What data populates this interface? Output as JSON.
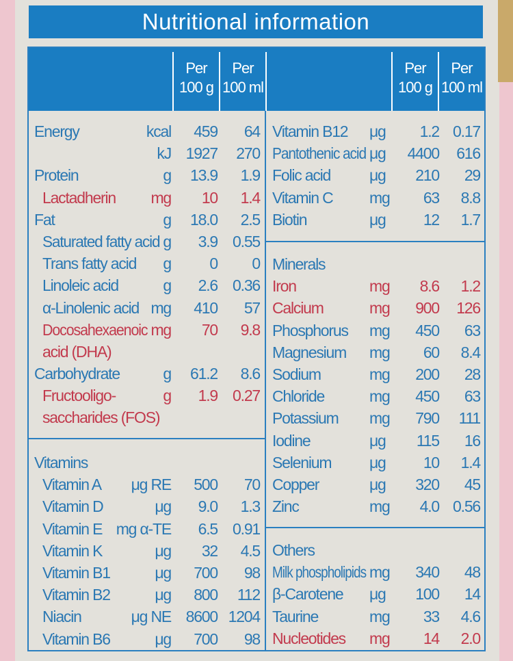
{
  "title": "Nutritional information",
  "header": {
    "per_100g": [
      "Per",
      "100 g"
    ],
    "per_100ml": [
      "Per",
      "100 ml"
    ]
  },
  "colors": {
    "blue": "#1a7dc2",
    "text_blue": "#2b78b3",
    "highlight_red": "#c23a4d",
    "background": "#e3e1db"
  },
  "left_main": [
    {
      "name": "Energy",
      "unit": "kcal",
      "g": "459",
      "ml": "64"
    },
    {
      "name": "",
      "unit": "kJ",
      "g": "1927",
      "ml": "270"
    },
    {
      "name": "Protein",
      "unit": "g",
      "g": "13.9",
      "ml": "1.9"
    },
    {
      "name": "Lactadherin",
      "unit": "mg",
      "g": "10",
      "ml": "1.4",
      "red": true,
      "indent": true
    },
    {
      "name": "Fat",
      "unit": "g",
      "g": "18.0",
      "ml": "2.5"
    },
    {
      "name": "Saturated fatty acid",
      "unit": "g",
      "g": "3.9",
      "ml": "0.55",
      "indent": true
    },
    {
      "name": "Trans fatty acid",
      "unit": "g",
      "g": "0",
      "ml": "0",
      "indent": true
    },
    {
      "name": "Linoleic acid",
      "unit": "g",
      "g": "2.6",
      "ml": "0.36",
      "indent": true
    },
    {
      "name": "α-Linolenic acid",
      "unit": "mg",
      "g": "410",
      "ml": "57",
      "indent": true
    },
    {
      "name": "Docosahexaenoic",
      "unit": "mg",
      "g": "70",
      "ml": "9.8",
      "red": true,
      "indent": true
    },
    {
      "name": "acid (DHA)",
      "unit": "",
      "g": "",
      "ml": "",
      "red": true,
      "indent": true
    },
    {
      "name": "Carbohydrate",
      "unit": "g",
      "g": "61.2",
      "ml": "8.6"
    },
    {
      "name": "Fructooligo-",
      "unit": "g",
      "g": "1.9",
      "ml": "0.27",
      "red": true,
      "indent": true
    },
    {
      "name": "saccharides (FOS)",
      "unit": "",
      "g": "",
      "ml": "",
      "red": true,
      "indent": true
    }
  ],
  "vitamins": {
    "heading": "Vitamins",
    "rows": [
      {
        "name": "Vitamin A",
        "unit": "μg RE",
        "g": "500",
        "ml": "70",
        "indent": true
      },
      {
        "name": "Vitamin D",
        "unit": "μg",
        "g": "9.0",
        "ml": "1.3",
        "indent": true
      },
      {
        "name": "Vitamin E",
        "unit": "mg α-TE",
        "g": "6.5",
        "ml": "0.91",
        "indent": true
      },
      {
        "name": "Vitamin K",
        "unit": "μg",
        "g": "32",
        "ml": "4.5",
        "indent": true
      },
      {
        "name": "Vitamin B1",
        "unit": "μg",
        "g": "700",
        "ml": "98",
        "indent": true
      },
      {
        "name": "Vitamin B2",
        "unit": "μg",
        "g": "800",
        "ml": "112",
        "indent": true
      },
      {
        "name": "Niacin",
        "unit": "μg NE",
        "g": "8600",
        "ml": "1204",
        "indent": true
      },
      {
        "name": "Vitamin B6",
        "unit": "μg",
        "g": "700",
        "ml": "98",
        "indent": true
      }
    ]
  },
  "right_vitamins": [
    {
      "name": "Vitamin B12",
      "unit": "μg",
      "g": "1.2",
      "ml": "0.17"
    },
    {
      "name": "Pantothenic acid",
      "unit": "μg",
      "g": "4400",
      "ml": "616"
    },
    {
      "name": "Folic acid",
      "unit": "μg",
      "g": "210",
      "ml": "29"
    },
    {
      "name": "Vitamin C",
      "unit": "mg",
      "g": "63",
      "ml": "8.8"
    },
    {
      "name": "Biotin",
      "unit": "μg",
      "g": "12",
      "ml": "1.7"
    }
  ],
  "minerals": {
    "heading": "Minerals",
    "rows": [
      {
        "name": "Iron",
        "unit": "mg",
        "g": "8.6",
        "ml": "1.2",
        "red": true
      },
      {
        "name": "Calcium",
        "unit": "mg",
        "g": "900",
        "ml": "126",
        "red": true
      },
      {
        "name": "Phosphorus",
        "unit": "mg",
        "g": "450",
        "ml": "63"
      },
      {
        "name": "Magnesium",
        "unit": "mg",
        "g": "60",
        "ml": "8.4"
      },
      {
        "name": "Sodium",
        "unit": "mg",
        "g": "200",
        "ml": "28"
      },
      {
        "name": "Chloride",
        "unit": "mg",
        "g": "450",
        "ml": "63"
      },
      {
        "name": "Potassium",
        "unit": "mg",
        "g": "790",
        "ml": "111"
      },
      {
        "name": "Iodine",
        "unit": "μg",
        "g": "115",
        "ml": "16"
      },
      {
        "name": "Selenium",
        "unit": "μg",
        "g": "10",
        "ml": "1.4"
      },
      {
        "name": "Copper",
        "unit": "μg",
        "g": "320",
        "ml": "45"
      },
      {
        "name": "Zinc",
        "unit": "mg",
        "g": "4.0",
        "ml": "0.56"
      }
    ]
  },
  "others": {
    "heading": "Others",
    "rows": [
      {
        "name": "Milk phospholipids",
        "unit": "mg",
        "g": "340",
        "ml": "48"
      },
      {
        "name": "β-Carotene",
        "unit": "μg",
        "g": "100",
        "ml": "14"
      },
      {
        "name": "Taurine",
        "unit": "mg",
        "g": "33",
        "ml": "4.6"
      },
      {
        "name": "Nucleotides",
        "unit": "mg",
        "g": "14",
        "ml": "2.0",
        "red": true
      }
    ]
  }
}
